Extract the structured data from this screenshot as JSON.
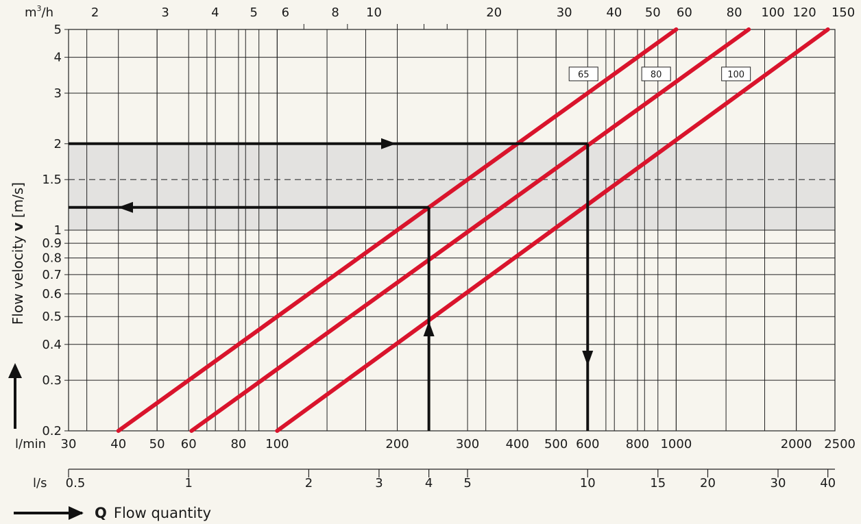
{
  "chart_data": {
    "type": "line",
    "y_axis": {
      "label_prefix": "Flow velocity ",
      "label_symbol": "v",
      "label_unit": " [m/s]",
      "scale": "log",
      "range": [
        0.2,
        5
      ],
      "ticks": [
        0.2,
        0.3,
        0.4,
        0.5,
        0.6,
        0.7,
        0.8,
        0.9,
        1,
        1.5,
        2,
        3,
        4,
        5
      ],
      "tick_labels": [
        "0.2",
        "0.3",
        "0.4",
        "0.5",
        "0.6",
        "0.7",
        "0.8",
        "0.9",
        "1",
        "1.5",
        "2",
        "3",
        "4",
        "5"
      ]
    },
    "x_axis_lmin": {
      "unit": "l/min",
      "scale": "log",
      "range": [
        30,
        2500
      ],
      "labeled_ticks": [
        30,
        40,
        50,
        60,
        80,
        100,
        200,
        300,
        400,
        500,
        600,
        800,
        1000,
        2000,
        2500
      ],
      "tick_labels": [
        "30",
        "40",
        "50",
        "60",
        "80",
        "100",
        "200",
        "300",
        "400",
        "500",
        "600",
        "800",
        "1000",
        "2000",
        "2500"
      ],
      "minor_ticks": [
        70,
        90,
        700,
        900
      ]
    },
    "x_axis_m3h": {
      "unit_base": "m",
      "unit_exp": "3",
      "unit_tail": "/h",
      "labeled_ticks": [
        2,
        3,
        4,
        5,
        6,
        8,
        10,
        20,
        30,
        40,
        50,
        60,
        80,
        100,
        120,
        150
      ],
      "tick_labels": [
        "2",
        "3",
        "4",
        "5",
        "6",
        "8",
        "10",
        "20",
        "30",
        "40",
        "50",
        "60",
        "80",
        "100",
        "120",
        "150"
      ],
      "minor_ticks": [
        7,
        9,
        12,
        14,
        16
      ]
    },
    "x_axis_ls": {
      "unit": "l/s",
      "labeled_ticks": [
        0.5,
        1,
        2,
        3,
        4,
        5,
        10,
        15,
        20,
        30,
        40
      ],
      "tick_labels": [
        "0.5",
        "1",
        "2",
        "3",
        "4",
        "5",
        "10",
        "15",
        "20",
        "30",
        "40"
      ]
    },
    "recommended_band": {
      "v_min": 1.0,
      "v_max": 2.0,
      "v_dashed": 1.5,
      "color": "#e3e2e0"
    },
    "series": [
      {
        "name": "65",
        "x_lmin": [
          40,
          1000
        ],
        "y": [
          0.2,
          5
        ],
        "color": "#d9142c"
      },
      {
        "name": "80",
        "x_lmin": [
          61,
          1520
        ],
        "y": [
          0.2,
          5
        ],
        "color": "#d9142c"
      },
      {
        "name": "100",
        "x_lmin": [
          100,
          2400
        ],
        "y": [
          0.2,
          5
        ],
        "color": "#d9142c"
      }
    ],
    "example_paths": [
      {
        "points_lmin_v": [
          [
            600,
            0.2
          ],
          [
            600,
            2.0
          ]
        ],
        "direction": "down"
      },
      {
        "points_lmin_v": [
          [
            600,
            2.0
          ],
          [
            30,
            2.0
          ]
        ],
        "direction": "right"
      },
      {
        "points_lmin_v": [
          [
            240,
            0.2
          ],
          [
            240,
            1.2
          ]
        ],
        "direction": "up"
      },
      {
        "points_lmin_v": [
          [
            240,
            1.2
          ],
          [
            30,
            1.2
          ]
        ],
        "direction": "left"
      }
    ],
    "grid": true
  },
  "legend": {
    "symbol": "Q",
    "text": "Flow quantity"
  },
  "colors": {
    "background": "#f7f5ee",
    "line": "#d9142c",
    "grid": "#222222",
    "band": "#e3e2e0"
  }
}
